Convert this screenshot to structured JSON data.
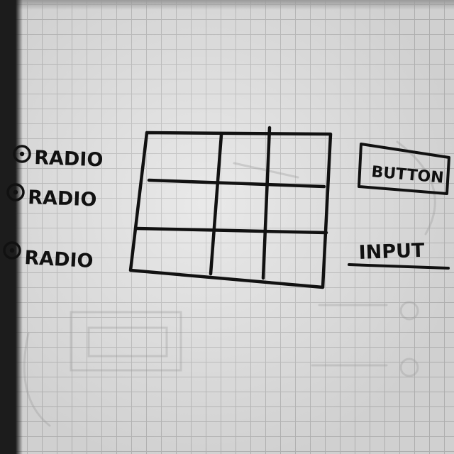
{
  "radio_options": [
    "RADIO",
    "RADIO",
    "RADIO"
  ],
  "button": {
    "label": "BUTTON"
  },
  "input": {
    "label": "INPUT"
  },
  "grid_table": {
    "rows": 3,
    "columns": 3
  },
  "colors": {
    "ink": "#111111",
    "paper": "#e2e2e2",
    "grid_line": "#bdbdbd"
  }
}
